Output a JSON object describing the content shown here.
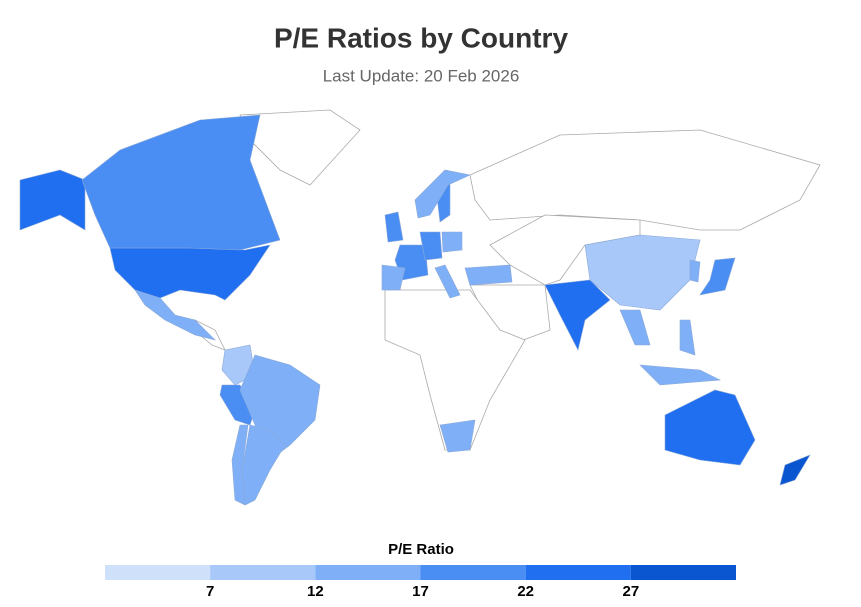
{
  "chart_data": {
    "type": "choropleth",
    "title": "P/E Ratios by Country",
    "subtitle": "Last Update: 20 Feb 2026",
    "legend_title": "P/E Ratio",
    "colorlim": [
      2,
      32
    ],
    "colorticks": [
      7,
      12,
      17,
      22,
      27
    ],
    "colors": [
      "#cfe0fb",
      "#a8c8f9",
      "#7fb0f7",
      "#4b8ef3",
      "#1f6ff0",
      "#0a56d0"
    ],
    "regions": [
      {
        "id": "USA",
        "value": 25
      },
      {
        "id": "CAN",
        "value": 19
      },
      {
        "id": "MEX",
        "value": 14
      },
      {
        "id": "COL",
        "value": 9
      },
      {
        "id": "PER",
        "value": 19
      },
      {
        "id": "BRA",
        "value": 13
      },
      {
        "id": "ARG",
        "value": 14
      },
      {
        "id": "CHL",
        "value": 15
      },
      {
        "id": "GBR",
        "value": 20
      },
      {
        "id": "FRA",
        "value": 19
      },
      {
        "id": "ESP",
        "value": 16
      },
      {
        "id": "DEU",
        "value": 18
      },
      {
        "id": "ITA",
        "value": 16
      },
      {
        "id": "POL",
        "value": 13
      },
      {
        "id": "SWE",
        "value": 20
      },
      {
        "id": "NOR",
        "value": 14
      },
      {
        "id": "TUR",
        "value": 14
      },
      {
        "id": "ZAF",
        "value": 14
      },
      {
        "id": "IND",
        "value": 24
      },
      {
        "id": "CHN",
        "value": 11
      },
      {
        "id": "KOR",
        "value": 14
      },
      {
        "id": "JPN",
        "value": 19
      },
      {
        "id": "THA",
        "value": 16
      },
      {
        "id": "PHL",
        "value": 12
      },
      {
        "id": "IDN",
        "value": 15
      },
      {
        "id": "AUS",
        "value": 24
      },
      {
        "id": "NZL",
        "value": 30
      }
    ]
  }
}
